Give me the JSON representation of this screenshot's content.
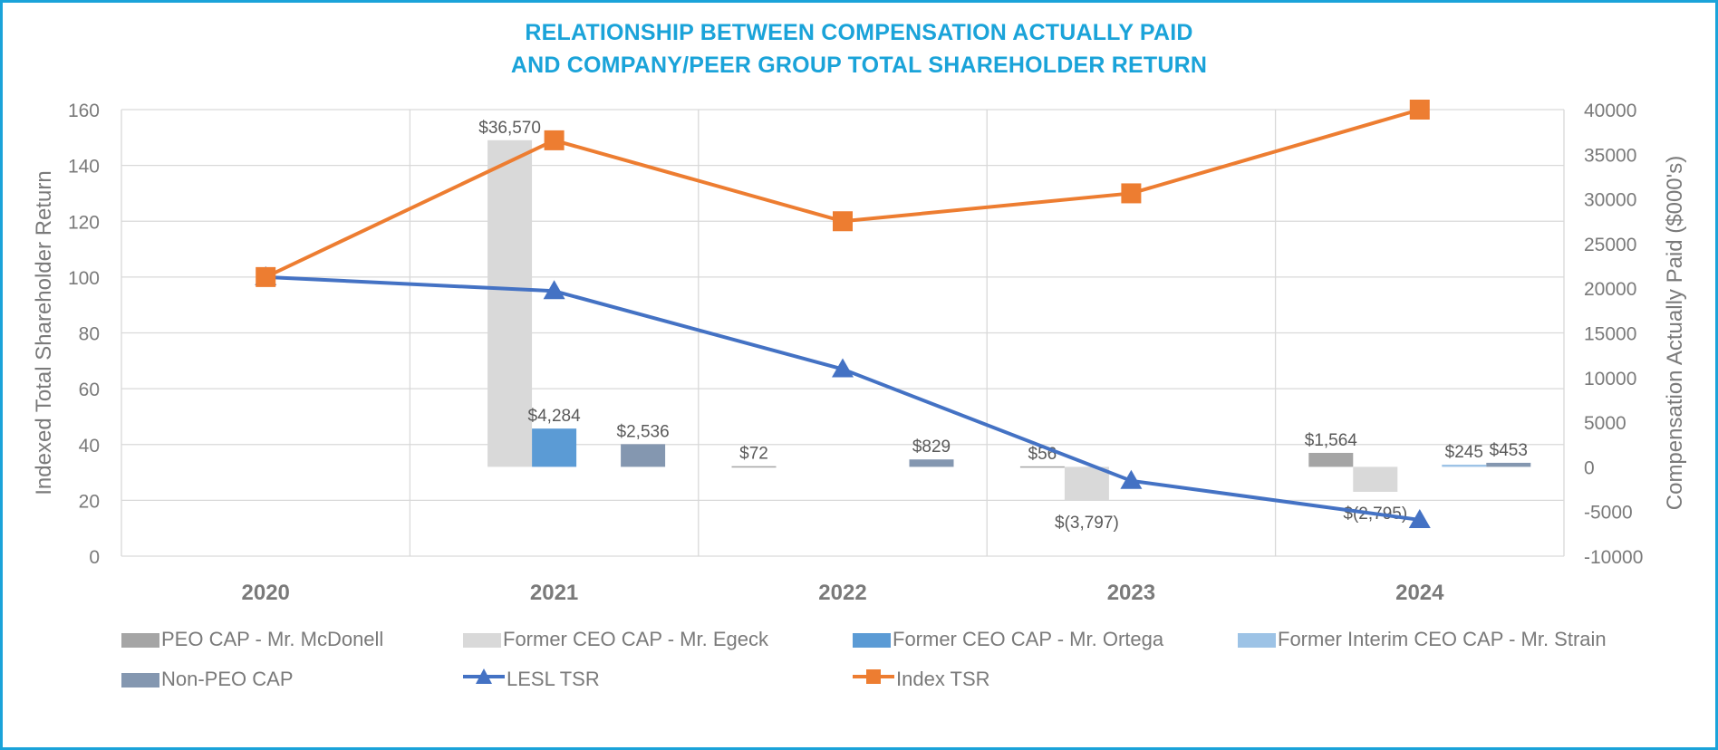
{
  "chart_data": {
    "type": "bar",
    "title": "RELATIONSHIP BETWEEN COMPENSATION ACTUALLY PAID",
    "subtitle": "AND COMPANY/PEER GROUP TOTAL SHAREHOLDER RETURN",
    "categories": [
      "2020",
      "2021",
      "2022",
      "2023",
      "2024"
    ],
    "ylabel_left": "Indexed Total Shareholder Return",
    "ylabel_right": "Compensation Actually Paid ($000's)",
    "ylim_left": [
      0,
      160
    ],
    "ylim_right": [
      -10000,
      40000
    ],
    "left_ticks": [
      "0",
      "20",
      "40",
      "60",
      "80",
      "100",
      "120",
      "140",
      "160"
    ],
    "right_ticks": [
      "-10000",
      "-5000",
      "0",
      "5000",
      "10000",
      "15000",
      "20000",
      "25000",
      "30000",
      "35000",
      "40000"
    ],
    "grid": true,
    "legend_position": "bottom",
    "bar_series": [
      {
        "name": "PEO CAP - Mr. McDonell",
        "color": "#a5a5a5",
        "values": [
          null,
          null,
          72,
          56,
          1564
        ],
        "labels": [
          null,
          null,
          "$72",
          "$56",
          "$1,564"
        ]
      },
      {
        "name": "Former CEO CAP - Mr. Egeck",
        "color": "#d9d9d9",
        "values": [
          null,
          36570,
          null,
          -3797,
          -2795
        ],
        "labels": [
          null,
          "$36,570",
          null,
          "$(3,797)",
          "$(2,795)"
        ]
      },
      {
        "name": "Former CEO CAP - Mr. Ortega",
        "color": "#5b9bd5",
        "values": [
          null,
          4284,
          null,
          null,
          null
        ],
        "labels": [
          null,
          "$4,284",
          null,
          null,
          null
        ]
      },
      {
        "name": "Former Interim CEO CAP - Mr. Strain",
        "color": "#9dc3e6",
        "values": [
          null,
          null,
          null,
          null,
          245
        ],
        "labels": [
          null,
          null,
          null,
          null,
          "$245"
        ]
      },
      {
        "name": "Non-PEO CAP",
        "color": "#8497b0",
        "values": [
          null,
          2536,
          829,
          null,
          453
        ],
        "labels": [
          null,
          "$2,536",
          "$829",
          null,
          "$453"
        ]
      }
    ],
    "line_series": [
      {
        "name": "LESL TSR",
        "color": "#4472c4",
        "marker": "triangle",
        "values": [
          100,
          95,
          67,
          27,
          13
        ]
      },
      {
        "name": "Index TSR",
        "color": "#ed7d31",
        "marker": "square",
        "values": [
          100,
          149,
          120,
          130,
          160
        ]
      }
    ]
  }
}
